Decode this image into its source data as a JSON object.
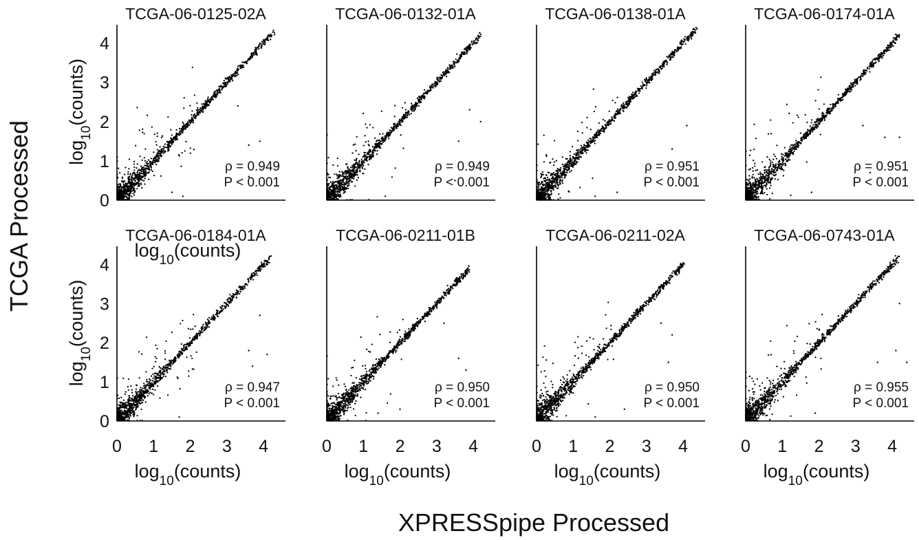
{
  "figure": {
    "x_title": "XPRESSpipe Processed",
    "y_title": "TCGA Processed",
    "axis_label_prefix": "log",
    "axis_label_sub": "10",
    "axis_label_suffix": "(counts)"
  },
  "chart_data": [
    {
      "type": "scatter",
      "title": "TCGA-06-0125-02A",
      "xlabel": "log10(counts)",
      "ylabel": "log10(counts)",
      "xlim": [
        0,
        4.6
      ],
      "ylim": [
        0,
        4.5
      ],
      "x_ticks": [
        0,
        1,
        2,
        3,
        4
      ],
      "y_ticks": [
        0,
        1,
        2,
        3,
        4
      ],
      "grid": false,
      "rho_label": "ρ = 0.949",
      "p_label": "P < 0.001",
      "rho": 0.949,
      "p": "<0.001",
      "points_approx": {
        "n": 1400,
        "trend": "y ≈ x",
        "max_xy": [
          4.3,
          4.2
        ],
        "outliers": [
          [
            3.3,
            2.4
          ],
          [
            3.9,
            1.5
          ],
          [
            3.6,
            1.4
          ],
          [
            3.6,
            0.6
          ],
          [
            1.5,
            0.2
          ],
          [
            1.8,
            0.1
          ]
        ]
      }
    },
    {
      "type": "scatter",
      "title": "TCGA-06-0132-01A",
      "xlabel": "",
      "ylabel": "",
      "xlim": [
        0,
        4.6
      ],
      "ylim": [
        0,
        4.5
      ],
      "x_ticks": [
        0,
        1,
        2,
        3,
        4
      ],
      "y_ticks": [],
      "grid": false,
      "rho_label": "ρ = 0.949",
      "p_label": "P < 0.001",
      "rho": 0.949,
      "p": "<0.001",
      "points_approx": {
        "n": 1400,
        "trend": "y ≈ x",
        "max_xy": [
          4.2,
          4.2
        ],
        "outliers": [
          [
            3.9,
            2.3
          ],
          [
            4.2,
            2.0
          ],
          [
            3.6,
            1.5
          ],
          [
            3.5,
            0.5
          ],
          [
            1.6,
            0.1
          ]
        ]
      }
    },
    {
      "type": "scatter",
      "title": "TCGA-06-0138-01A",
      "xlabel": "",
      "ylabel": "",
      "xlim": [
        0,
        4.6
      ],
      "ylim": [
        0,
        4.5
      ],
      "x_ticks": [
        0,
        1,
        2,
        3,
        4
      ],
      "y_ticks": [],
      "grid": false,
      "rho_label": "ρ = 0.951",
      "p_label": "P < 0.001",
      "rho": 0.951,
      "p": "<0.001",
      "points_approx": {
        "n": 1400,
        "trend": "y ≈ x",
        "max_xy": [
          4.35,
          4.35
        ],
        "outliers": [
          [
            4.1,
            1.9
          ],
          [
            3.7,
            1.3
          ],
          [
            3.9,
            0.6
          ],
          [
            1.6,
            0.1
          ],
          [
            2.2,
            0.2
          ]
        ]
      }
    },
    {
      "type": "scatter",
      "title": "TCGA-06-0174-01A",
      "xlabel": "",
      "ylabel": "",
      "xlim": [
        0,
        4.6
      ],
      "ylim": [
        0,
        4.5
      ],
      "x_ticks": [
        0,
        1,
        2,
        3,
        4
      ],
      "y_ticks": [],
      "grid": false,
      "rho_label": "ρ = 0.951",
      "p_label": "P < 0.001",
      "rho": 0.951,
      "p": "<0.001",
      "points_approx": {
        "n": 1400,
        "trend": "y ≈ x",
        "max_xy": [
          4.2,
          4.1
        ],
        "outliers": [
          [
            3.2,
            1.9
          ],
          [
            4.2,
            1.6
          ],
          [
            3.8,
            1.6
          ],
          [
            3.4,
            0.7
          ],
          [
            1.8,
            0.2
          ]
        ]
      }
    },
    {
      "type": "scatter",
      "title": "TCGA-06-0184-01A",
      "xlabel": "log10(counts)",
      "ylabel": "log10(counts)",
      "xlim": [
        0,
        4.6
      ],
      "ylim": [
        0,
        4.5
      ],
      "x_ticks": [
        0,
        1,
        2,
        3,
        4
      ],
      "y_ticks": [
        0,
        1,
        2,
        3,
        4
      ],
      "grid": false,
      "rho_label": "ρ = 0.947",
      "p_label": "P < 0.001",
      "rho": 0.947,
      "p": "<0.001",
      "points_approx": {
        "n": 1400,
        "trend": "y ≈ x",
        "max_xy": [
          4.2,
          4.1
        ],
        "outliers": [
          [
            3.9,
            2.7
          ],
          [
            4.1,
            1.7
          ],
          [
            3.6,
            1.8
          ],
          [
            3.7,
            1.4
          ],
          [
            1.7,
            0.1
          ]
        ]
      }
    },
    {
      "type": "scatter",
      "title": "TCGA-06-0211-01B",
      "xlabel": "log10(counts)",
      "ylabel": "",
      "xlim": [
        0,
        4.6
      ],
      "ylim": [
        0,
        4.5
      ],
      "x_ticks": [
        0,
        1,
        2,
        3,
        4
      ],
      "y_ticks": [],
      "grid": false,
      "rho_label": "ρ = 0.950",
      "p_label": "P < 0.001",
      "rho": 0.95,
      "p": "<0.001",
      "points_approx": {
        "n": 1400,
        "trend": "y ≈ x",
        "max_xy": [
          3.9,
          3.9
        ],
        "outliers": [
          [
            3.2,
            2.5
          ],
          [
            3.6,
            1.6
          ],
          [
            3.8,
            1.3
          ],
          [
            1.4,
            0.2
          ],
          [
            2.0,
            0.3
          ]
        ]
      }
    },
    {
      "type": "scatter",
      "title": "TCGA-06-0211-02A",
      "xlabel": "log10(counts)",
      "ylabel": "",
      "xlim": [
        0,
        4.6
      ],
      "ylim": [
        0,
        4.5
      ],
      "x_ticks": [
        0,
        1,
        2,
        3,
        4
      ],
      "y_ticks": [],
      "grid": false,
      "rho_label": "ρ = 0.950",
      "p_label": "P < 0.001",
      "rho": 0.95,
      "p": "<0.001",
      "points_approx": {
        "n": 1400,
        "trend": "y ≈ x",
        "max_xy": [
          4.0,
          4.0
        ],
        "outliers": [
          [
            3.4,
            2.5
          ],
          [
            3.7,
            2.2
          ],
          [
            3.6,
            1.5
          ],
          [
            1.6,
            0.1
          ],
          [
            2.4,
            0.3
          ]
        ]
      }
    },
    {
      "type": "scatter",
      "title": "TCGA-06-0743-01A",
      "xlabel": "log10(counts)",
      "ylabel": "",
      "xlim": [
        0,
        4.6
      ],
      "ylim": [
        0,
        4.5
      ],
      "x_ticks": [
        0,
        1,
        2,
        3,
        4
      ],
      "y_ticks": [],
      "grid": false,
      "rho_label": "ρ = 0.955",
      "p_label": "P < 0.001",
      "rho": 0.955,
      "p": "<0.001",
      "points_approx": {
        "n": 1400,
        "trend": "y ≈ x",
        "max_xy": [
          4.2,
          4.1
        ],
        "outliers": [
          [
            4.2,
            3.0
          ],
          [
            4.1,
            1.8
          ],
          [
            4.4,
            1.5
          ],
          [
            3.6,
            1.5
          ],
          [
            1.9,
            0.2
          ]
        ]
      }
    }
  ]
}
